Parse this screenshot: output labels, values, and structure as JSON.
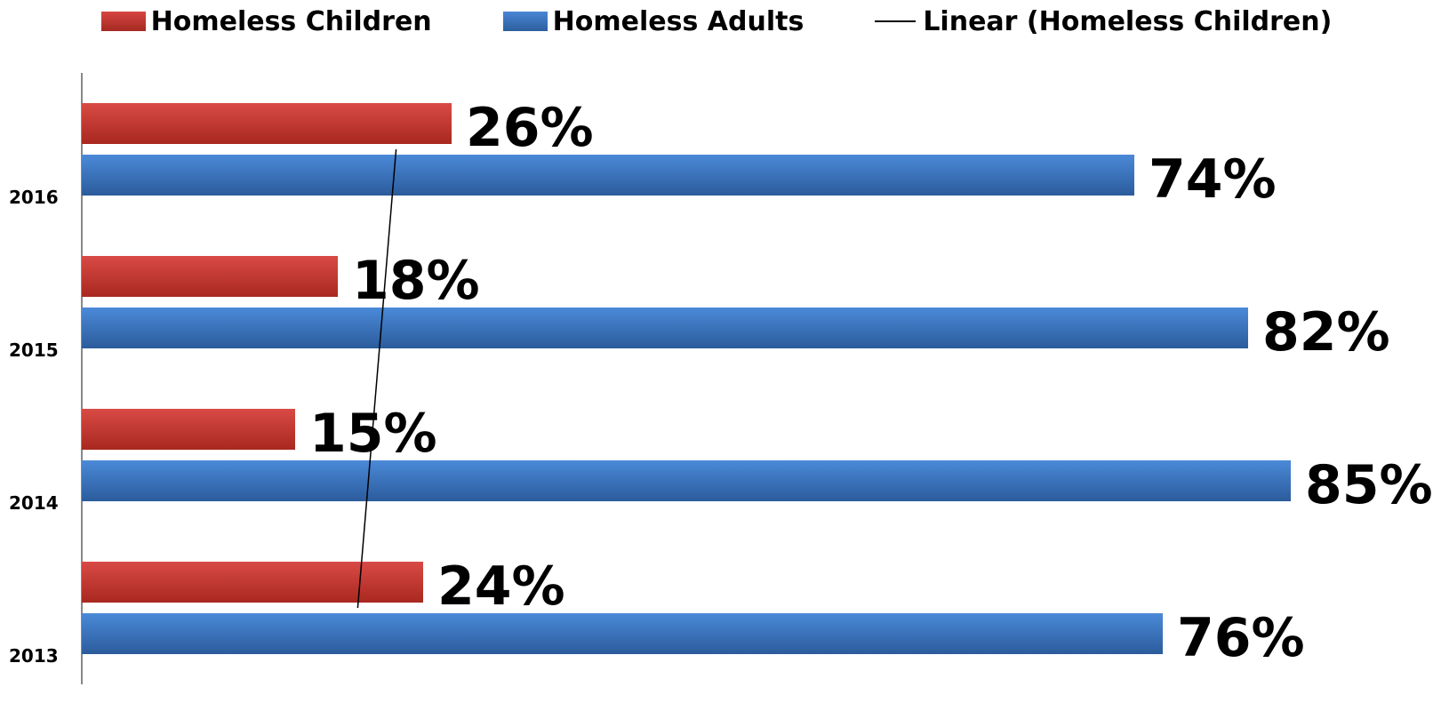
{
  "chart_data": {
    "type": "bar",
    "orientation": "horizontal",
    "categories": [
      "2013",
      "2014",
      "2015",
      "2016"
    ],
    "series": [
      {
        "name": "Homeless Children",
        "values": [
          24,
          15,
          18,
          26
        ],
        "labels": [
          "24%",
          "15%",
          "18%",
          "26%"
        ],
        "color": "#c0392b"
      },
      {
        "name": "Homeless Adults",
        "values": [
          76,
          85,
          82,
          74
        ],
        "labels": [
          "76%",
          "85%",
          "82%",
          "74%"
        ],
        "color": "#3a75c4"
      }
    ],
    "trendline": {
      "name": "Linear (Homeless Children)",
      "series": "Homeless Children",
      "type": "linear"
    },
    "xlim": [
      0,
      85
    ],
    "legend_position": "top",
    "grid": false
  }
}
